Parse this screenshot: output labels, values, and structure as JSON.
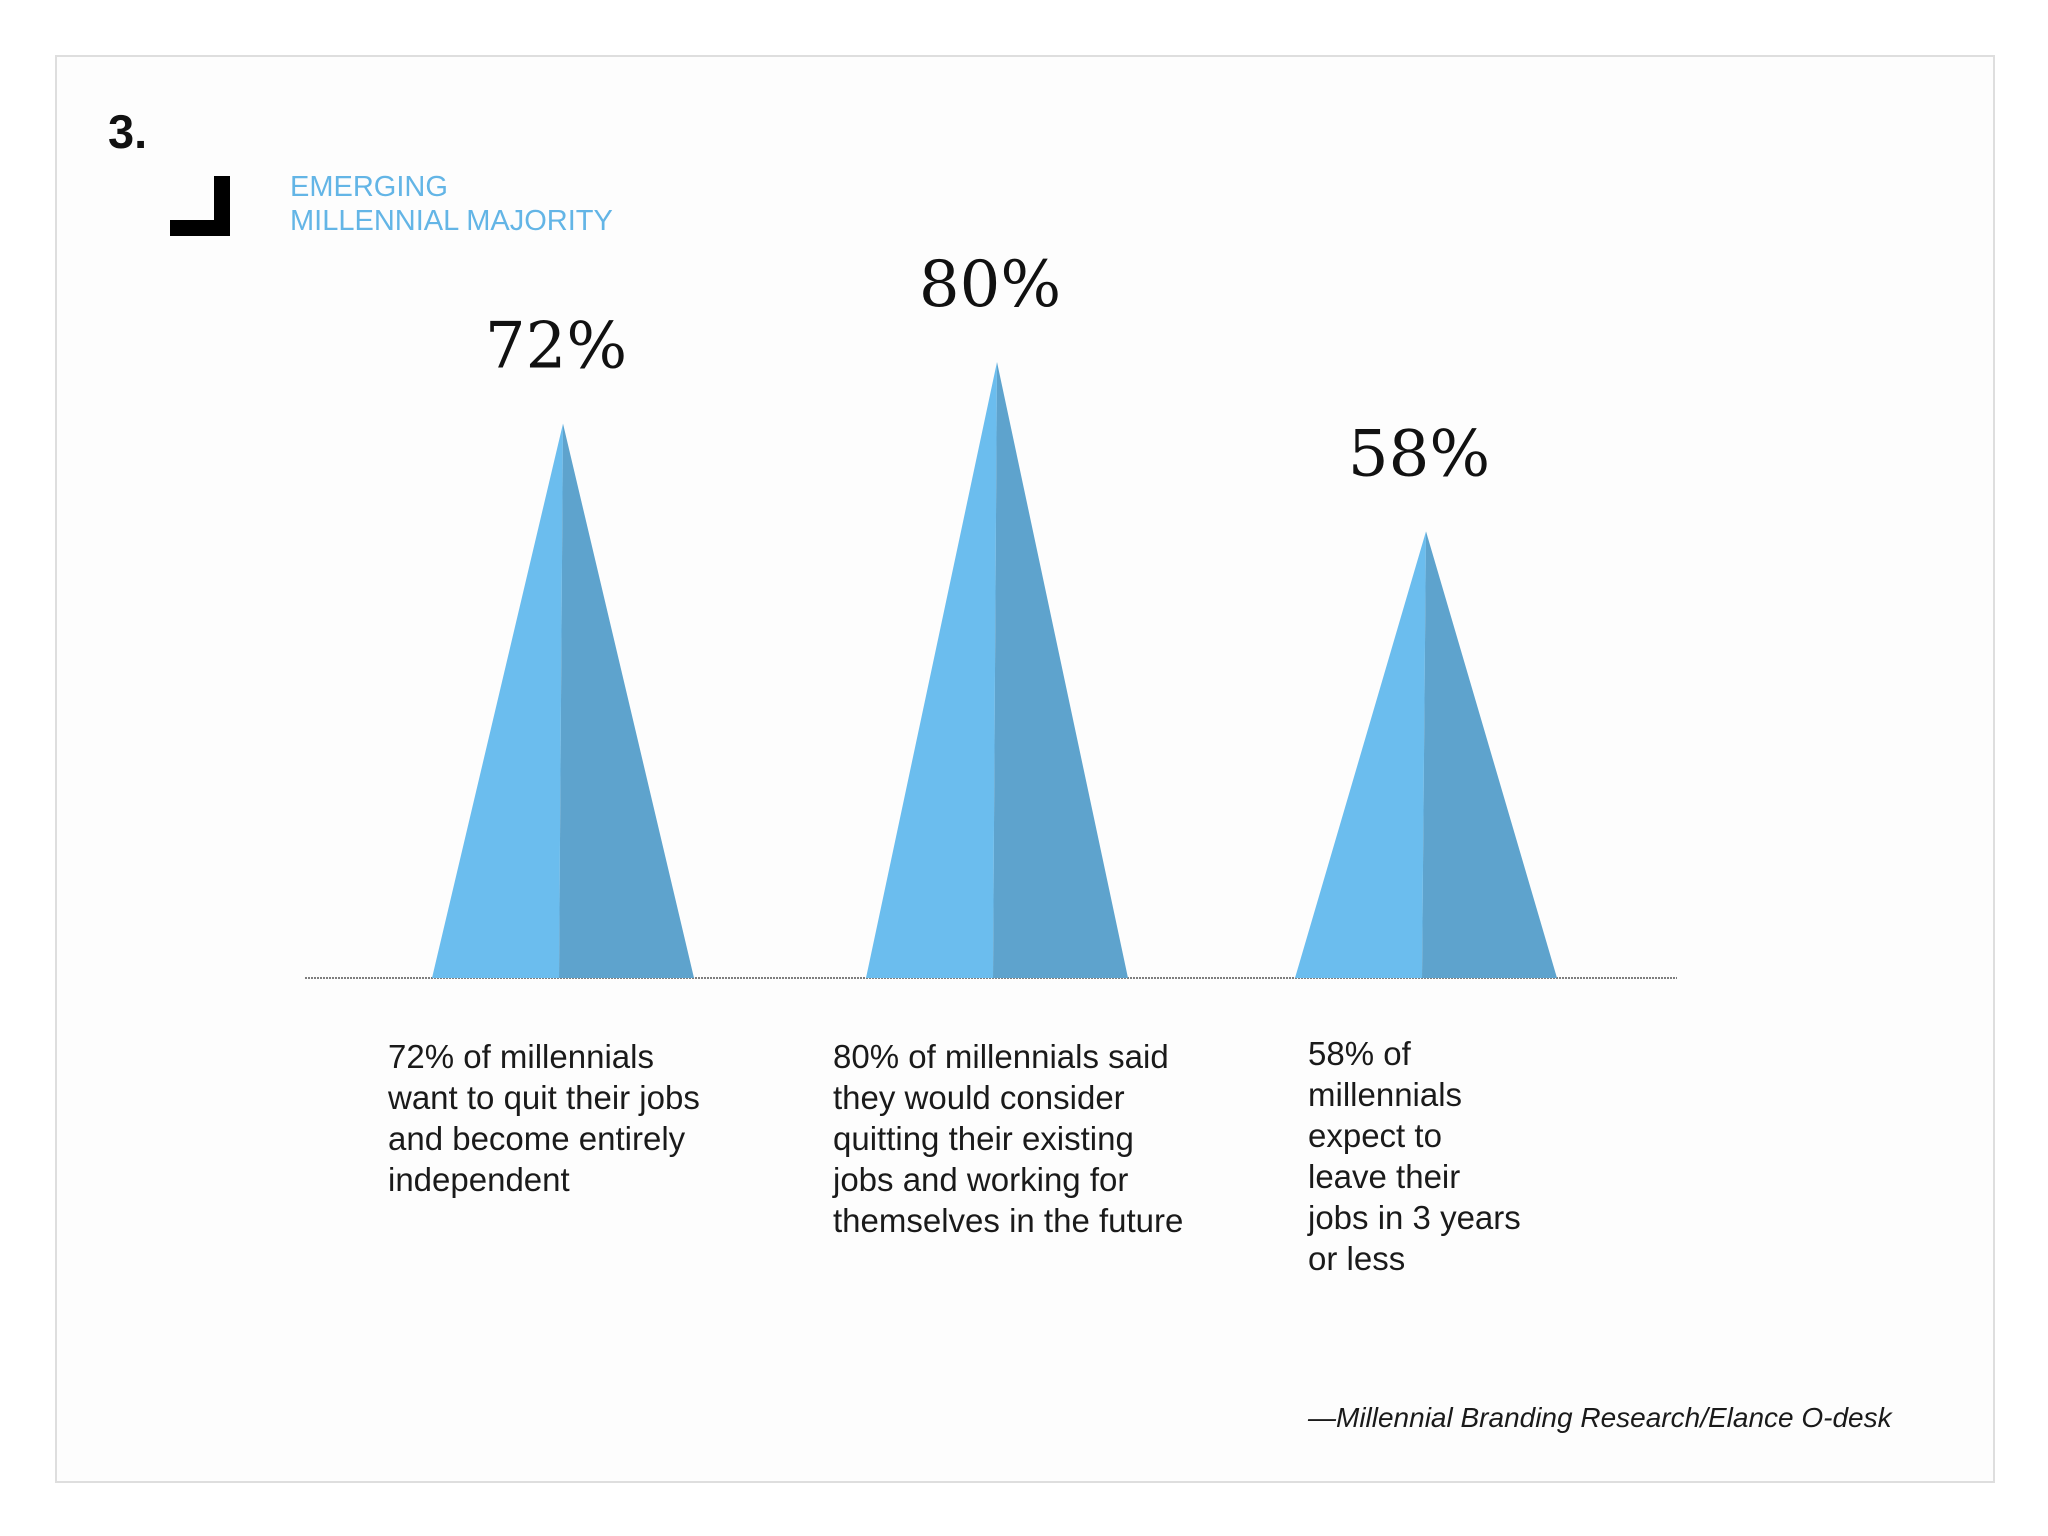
{
  "slide": {
    "number": "3.",
    "section_title_lines": [
      "EMERGING",
      "MILLENNIAL MAJORITY"
    ],
    "accent_color": "#63b5e6",
    "source": "—Millennial Branding Research/Elance O-desk"
  },
  "chart_data": {
    "type": "bar",
    "mark_shape": "triangle",
    "categories": [
      "72%",
      "80%",
      "58%"
    ],
    "values": [
      72,
      80,
      58
    ],
    "value_labels": [
      "72%",
      "80%",
      "58%"
    ],
    "captions": [
      [
        "72% of millennials",
        "want to quit their jobs",
        "and become entirely",
        "independent"
      ],
      [
        "80% of millennials said",
        "they would consider",
        "quitting their existing",
        "jobs and working for",
        "themselves in the future"
      ],
      [
        "58% of",
        "millennials",
        "expect to",
        "leave their",
        "jobs in 3 years",
        "or less"
      ]
    ],
    "ylim": [
      0,
      100
    ],
    "grid": false,
    "colors": {
      "light": "#6bbdee",
      "dark": "#5ea3cd",
      "baseline": "#555555"
    }
  }
}
